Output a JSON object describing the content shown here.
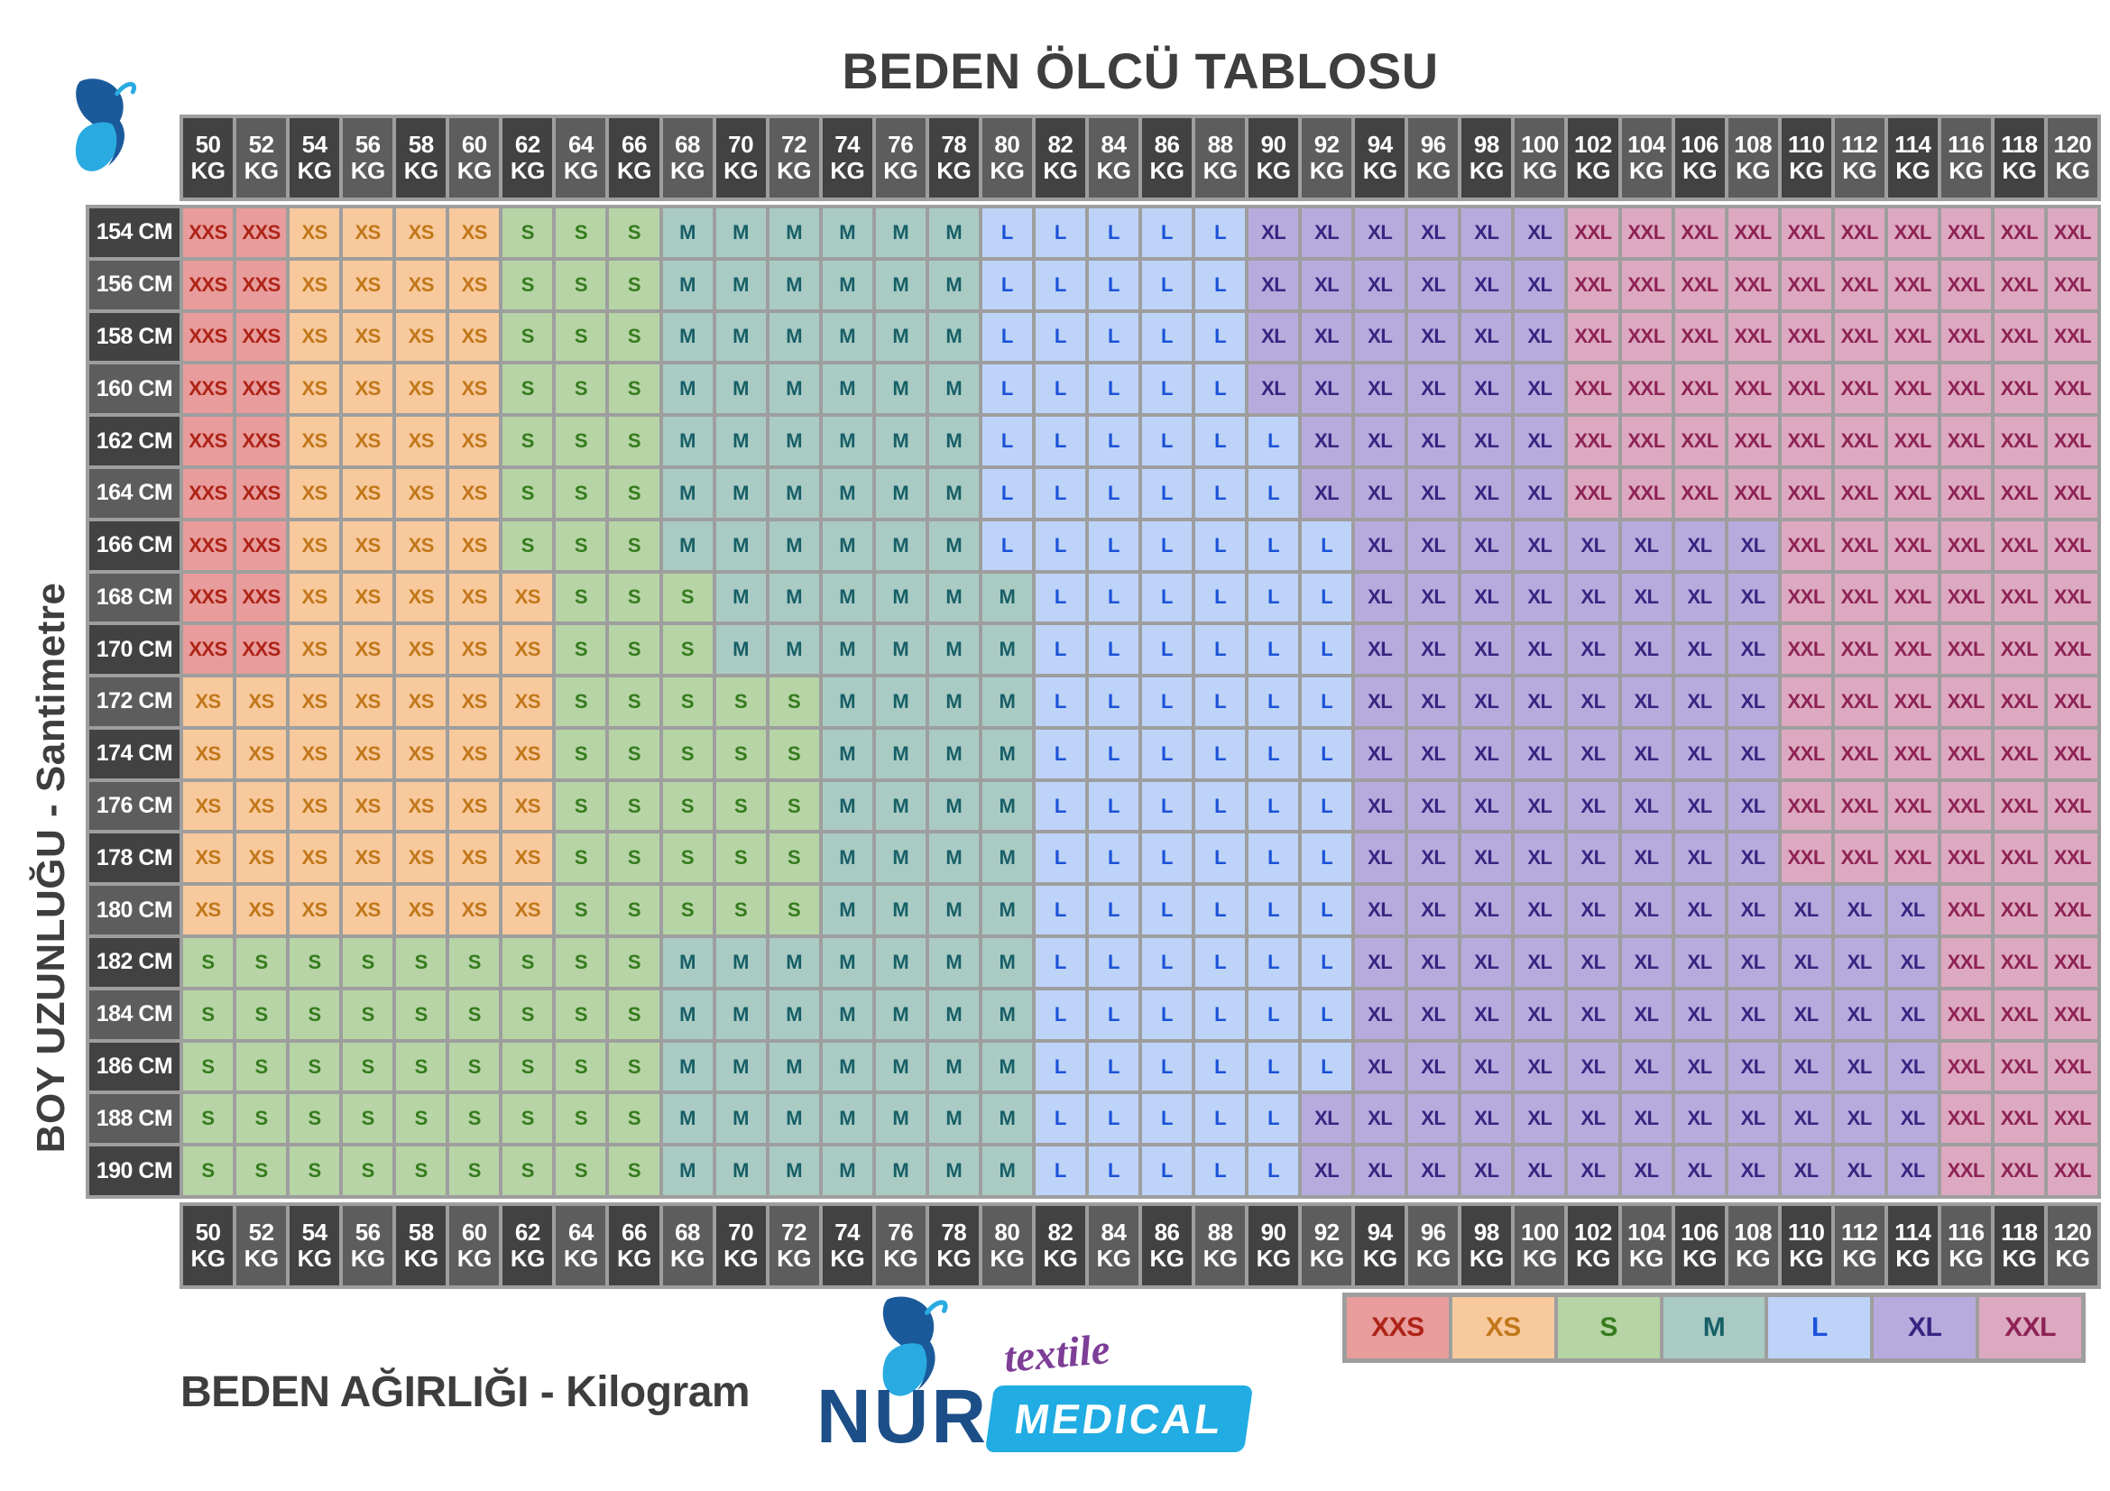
{
  "chart_data": {
    "type": "heatmap",
    "title": "BEDEN ÖLCÜ TABLOSU",
    "x": {
      "label": "BEDEN AĞIRLIĞI - Kilogram",
      "unit": "KG",
      "values": [
        50,
        52,
        54,
        56,
        58,
        60,
        62,
        64,
        66,
        68,
        70,
        72,
        74,
        76,
        78,
        80,
        82,
        84,
        86,
        88,
        90,
        92,
        94,
        96,
        98,
        100,
        102,
        104,
        106,
        108,
        110,
        112,
        114,
        116,
        118,
        120
      ]
    },
    "y": {
      "label": "BOY UZUNLUĞU - Santimetre",
      "unit": "CM",
      "values": [
        154,
        156,
        158,
        160,
        162,
        164,
        166,
        168,
        170,
        172,
        174,
        176,
        178,
        180,
        182,
        184,
        186,
        188,
        190
      ]
    },
    "legend": [
      "XXS",
      "XS",
      "S",
      "M",
      "L",
      "XL",
      "XXL"
    ],
    "matrix": [
      [
        "XXS",
        "XXS",
        "XS",
        "XS",
        "XS",
        "XS",
        "S",
        "S",
        "S",
        "M",
        "M",
        "M",
        "M",
        "M",
        "M",
        "L",
        "L",
        "L",
        "L",
        "L",
        "XL",
        "XL",
        "XL",
        "XL",
        "XL",
        "XL",
        "XXL",
        "XXL",
        "XXL",
        "XXL",
        "XXL",
        "XXL",
        "XXL",
        "XXL",
        "XXL",
        "XXL"
      ],
      [
        "XXS",
        "XXS",
        "XS",
        "XS",
        "XS",
        "XS",
        "S",
        "S",
        "S",
        "M",
        "M",
        "M",
        "M",
        "M",
        "M",
        "L",
        "L",
        "L",
        "L",
        "L",
        "XL",
        "XL",
        "XL",
        "XL",
        "XL",
        "XL",
        "XXL",
        "XXL",
        "XXL",
        "XXL",
        "XXL",
        "XXL",
        "XXL",
        "XXL",
        "XXL",
        "XXL"
      ],
      [
        "XXS",
        "XXS",
        "XS",
        "XS",
        "XS",
        "XS",
        "S",
        "S",
        "S",
        "M",
        "M",
        "M",
        "M",
        "M",
        "M",
        "L",
        "L",
        "L",
        "L",
        "L",
        "XL",
        "XL",
        "XL",
        "XL",
        "XL",
        "XL",
        "XXL",
        "XXL",
        "XXL",
        "XXL",
        "XXL",
        "XXL",
        "XXL",
        "XXL",
        "XXL",
        "XXL"
      ],
      [
        "XXS",
        "XXS",
        "XS",
        "XS",
        "XS",
        "XS",
        "S",
        "S",
        "S",
        "M",
        "M",
        "M",
        "M",
        "M",
        "M",
        "L",
        "L",
        "L",
        "L",
        "L",
        "XL",
        "XL",
        "XL",
        "XL",
        "XL",
        "XL",
        "XXL",
        "XXL",
        "XXL",
        "XXL",
        "XXL",
        "XXL",
        "XXL",
        "XXL",
        "XXL",
        "XXL"
      ],
      [
        "XXS",
        "XXS",
        "XS",
        "XS",
        "XS",
        "XS",
        "S",
        "S",
        "S",
        "M",
        "M",
        "M",
        "M",
        "M",
        "M",
        "L",
        "L",
        "L",
        "L",
        "L",
        "L",
        "XL",
        "XL",
        "XL",
        "XL",
        "XL",
        "XXL",
        "XXL",
        "XXL",
        "XXL",
        "XXL",
        "XXL",
        "XXL",
        "XXL",
        "XXL",
        "XXL"
      ],
      [
        "XXS",
        "XXS",
        "XS",
        "XS",
        "XS",
        "XS",
        "S",
        "S",
        "S",
        "M",
        "M",
        "M",
        "M",
        "M",
        "M",
        "L",
        "L",
        "L",
        "L",
        "L",
        "L",
        "XL",
        "XL",
        "XL",
        "XL",
        "XL",
        "XXL",
        "XXL",
        "XXL",
        "XXL",
        "XXL",
        "XXL",
        "XXL",
        "XXL",
        "XXL",
        "XXL"
      ],
      [
        "XXS",
        "XXS",
        "XS",
        "XS",
        "XS",
        "XS",
        "S",
        "S",
        "S",
        "M",
        "M",
        "M",
        "M",
        "M",
        "M",
        "L",
        "L",
        "L",
        "L",
        "L",
        "L",
        "L",
        "XL",
        "XL",
        "XL",
        "XL",
        "XL",
        "XL",
        "XL",
        "XL",
        "XXL",
        "XXL",
        "XXL",
        "XXL",
        "XXL",
        "XXL"
      ],
      [
        "XXS",
        "XXS",
        "XS",
        "XS",
        "XS",
        "XS",
        "XS",
        "S",
        "S",
        "S",
        "M",
        "M",
        "M",
        "M",
        "M",
        "M",
        "L",
        "L",
        "L",
        "L",
        "L",
        "L",
        "XL",
        "XL",
        "XL",
        "XL",
        "XL",
        "XL",
        "XL",
        "XL",
        "XXL",
        "XXL",
        "XXL",
        "XXL",
        "XXL",
        "XXL"
      ],
      [
        "XXS",
        "XXS",
        "XS",
        "XS",
        "XS",
        "XS",
        "XS",
        "S",
        "S",
        "S",
        "M",
        "M",
        "M",
        "M",
        "M",
        "M",
        "L",
        "L",
        "L",
        "L",
        "L",
        "L",
        "XL",
        "XL",
        "XL",
        "XL",
        "XL",
        "XL",
        "XL",
        "XL",
        "XXL",
        "XXL",
        "XXL",
        "XXL",
        "XXL",
        "XXL"
      ],
      [
        "XS",
        "XS",
        "XS",
        "XS",
        "XS",
        "XS",
        "XS",
        "S",
        "S",
        "S",
        "S",
        "S",
        "M",
        "M",
        "M",
        "M",
        "L",
        "L",
        "L",
        "L",
        "L",
        "L",
        "XL",
        "XL",
        "XL",
        "XL",
        "XL",
        "XL",
        "XL",
        "XL",
        "XXL",
        "XXL",
        "XXL",
        "XXL",
        "XXL",
        "XXL"
      ],
      [
        "XS",
        "XS",
        "XS",
        "XS",
        "XS",
        "XS",
        "XS",
        "S",
        "S",
        "S",
        "S",
        "S",
        "M",
        "M",
        "M",
        "M",
        "L",
        "L",
        "L",
        "L",
        "L",
        "L",
        "XL",
        "XL",
        "XL",
        "XL",
        "XL",
        "XL",
        "XL",
        "XL",
        "XXL",
        "XXL",
        "XXL",
        "XXL",
        "XXL",
        "XXL"
      ],
      [
        "XS",
        "XS",
        "XS",
        "XS",
        "XS",
        "XS",
        "XS",
        "S",
        "S",
        "S",
        "S",
        "S",
        "M",
        "M",
        "M",
        "M",
        "L",
        "L",
        "L",
        "L",
        "L",
        "L",
        "XL",
        "XL",
        "XL",
        "XL",
        "XL",
        "XL",
        "XL",
        "XL",
        "XXL",
        "XXL",
        "XXL",
        "XXL",
        "XXL",
        "XXL"
      ],
      [
        "XS",
        "XS",
        "XS",
        "XS",
        "XS",
        "XS",
        "XS",
        "S",
        "S",
        "S",
        "S",
        "S",
        "M",
        "M",
        "M",
        "M",
        "L",
        "L",
        "L",
        "L",
        "L",
        "L",
        "XL",
        "XL",
        "XL",
        "XL",
        "XL",
        "XL",
        "XL",
        "XL",
        "XXL",
        "XXL",
        "XXL",
        "XXL",
        "XXL",
        "XXL"
      ],
      [
        "XS",
        "XS",
        "XS",
        "XS",
        "XS",
        "XS",
        "XS",
        "S",
        "S",
        "S",
        "S",
        "S",
        "M",
        "M",
        "M",
        "M",
        "L",
        "L",
        "L",
        "L",
        "L",
        "L",
        "XL",
        "XL",
        "XL",
        "XL",
        "XL",
        "XL",
        "XL",
        "XL",
        "XL",
        "XL",
        "XL",
        "XXL",
        "XXL",
        "XXL"
      ],
      [
        "S",
        "S",
        "S",
        "S",
        "S",
        "S",
        "S",
        "S",
        "S",
        "M",
        "M",
        "M",
        "M",
        "M",
        "M",
        "M",
        "L",
        "L",
        "L",
        "L",
        "L",
        "L",
        "XL",
        "XL",
        "XL",
        "XL",
        "XL",
        "XL",
        "XL",
        "XL",
        "XL",
        "XL",
        "XL",
        "XXL",
        "XXL",
        "XXL"
      ],
      [
        "S",
        "S",
        "S",
        "S",
        "S",
        "S",
        "S",
        "S",
        "S",
        "M",
        "M",
        "M",
        "M",
        "M",
        "M",
        "M",
        "L",
        "L",
        "L",
        "L",
        "L",
        "L",
        "XL",
        "XL",
        "XL",
        "XL",
        "XL",
        "XL",
        "XL",
        "XL",
        "XL",
        "XL",
        "XL",
        "XXL",
        "XXL",
        "XXL"
      ],
      [
        "S",
        "S",
        "S",
        "S",
        "S",
        "S",
        "S",
        "S",
        "S",
        "M",
        "M",
        "M",
        "M",
        "M",
        "M",
        "M",
        "L",
        "L",
        "L",
        "L",
        "L",
        "L",
        "XL",
        "XL",
        "XL",
        "XL",
        "XL",
        "XL",
        "XL",
        "XL",
        "XL",
        "XL",
        "XL",
        "XXL",
        "XXL",
        "XXL"
      ],
      [
        "S",
        "S",
        "S",
        "S",
        "S",
        "S",
        "S",
        "S",
        "S",
        "M",
        "M",
        "M",
        "M",
        "M",
        "M",
        "M",
        "L",
        "L",
        "L",
        "L",
        "L",
        "XL",
        "XL",
        "XL",
        "XL",
        "XL",
        "XL",
        "XL",
        "XL",
        "XL",
        "XL",
        "XL",
        "XL",
        "XXL",
        "XXL",
        "XXL"
      ],
      [
        "S",
        "S",
        "S",
        "S",
        "S",
        "S",
        "S",
        "S",
        "S",
        "M",
        "M",
        "M",
        "M",
        "M",
        "M",
        "M",
        "L",
        "L",
        "L",
        "L",
        "L",
        "XL",
        "XL",
        "XL",
        "XL",
        "XL",
        "XL",
        "XL",
        "XL",
        "XL",
        "XL",
        "XL",
        "XL",
        "XXL",
        "XXL",
        "XXL"
      ]
    ]
  },
  "sizes": {
    "XXS": {
      "bg": "#E89C9B",
      "text": "#AE2317"
    },
    "XS": {
      "bg": "#F8C99C",
      "text": "#C1771A"
    },
    "S": {
      "bg": "#B6D4A5",
      "text": "#357B1D"
    },
    "M": {
      "bg": "#A9CBC4",
      "text": "#175F67"
    },
    "L": {
      "bg": "#BDD3F8",
      "text": "#1C52D8"
    },
    "XL": {
      "bg": "#B7ABDD",
      "text": "#392481"
    },
    "XXL": {
      "bg": "#DCA9C0",
      "text": "#8E2255"
    }
  },
  "theme": {
    "header_dark": "#424242",
    "header_light": "#5D5D5D",
    "grid_bg": "#9E9E9E",
    "text_dark": "#3E3E3E",
    "header_text": "#FFFFFF",
    "logo_navy": "#1C4E87",
    "logo_blue": "#21ACE3",
    "logo_purple": "#7D3E97",
    "butterfly_dark": "#1B5A9A",
    "butterfly_light": "#29ABE2"
  },
  "logo": {
    "brand": "NUR",
    "textile": "textile",
    "medical": "MEDICAL"
  }
}
